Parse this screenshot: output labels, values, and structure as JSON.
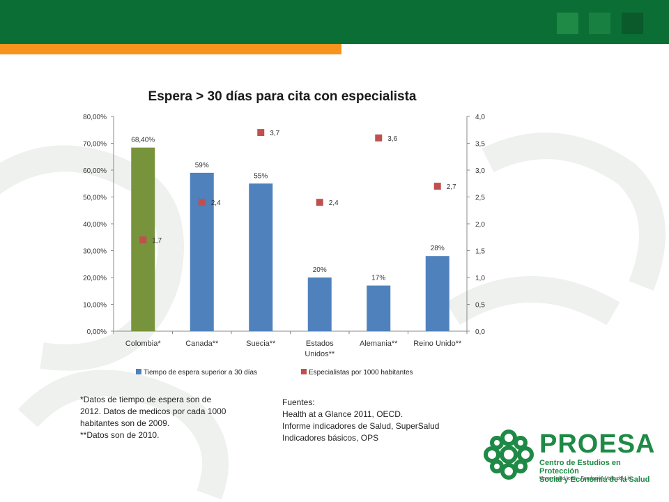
{
  "chart_data": {
    "type": "bar",
    "title": "Espera > 30 días para cita con especialista",
    "categories": [
      "Colombia*",
      "Canada**",
      "Suecia**",
      "Estados Unidos**",
      "Alemania**",
      "Reino Unido**"
    ],
    "category_lines": [
      [
        "Colombia*"
      ],
      [
        "Canada**"
      ],
      [
        "Suecia**"
      ],
      [
        "Estados",
        "Unidos**"
      ],
      [
        "Alemania**"
      ],
      [
        "Reino Unido**"
      ]
    ],
    "series": [
      {
        "name": "Tiempo de espera superior a 30 días",
        "axis": "left",
        "kind": "bar",
        "values": [
          68.4,
          59,
          55,
          20,
          17,
          28
        ],
        "labels": [
          "68,40%",
          "59%",
          "55%",
          "20%",
          "17%",
          "28%"
        ],
        "colors": [
          "#77933c",
          "#4f81bd",
          "#4f81bd",
          "#4f81bd",
          "#4f81bd",
          "#4f81bd"
        ]
      },
      {
        "name": "Especialistas por 1000 habitantes",
        "axis": "right",
        "kind": "marker",
        "values": [
          1.7,
          2.4,
          3.7,
          2.4,
          3.6,
          2.7
        ],
        "labels": [
          "1,7",
          "2,4",
          "3,7",
          "2,4",
          "3,6",
          "2,7"
        ],
        "color": "#c0504d"
      }
    ],
    "y_left": {
      "min": 0,
      "max": 80,
      "ticks": [
        "0,00%",
        "10,00%",
        "20,00%",
        "30,00%",
        "40,00%",
        "50,00%",
        "60,00%",
        "70,00%",
        "80,00%"
      ]
    },
    "y_right": {
      "min": 0,
      "max": 4,
      "ticks": [
        "0,0",
        "0,5",
        "1,0",
        "1,5",
        "2,0",
        "2,5",
        "3,0",
        "3,5",
        "4,0"
      ]
    },
    "legend_position": "bottom",
    "grid": false,
    "bar_color": "#4f81bd"
  },
  "notes": {
    "left": [
      "*Datos de tiempo de espera son de",
      "2012.  Datos de medicos por cada 1000",
      "habitantes  son de 2009.",
      "**Datos son de 2010."
    ],
    "right": [
      "Fuentes:",
      "Health at a Glance 2011,  OECD.",
      "Informe indicadores de Salud, SuperSalud",
      "Indicadores básicos, OPS"
    ]
  },
  "logo": {
    "name": "PROESA",
    "subtitle": [
      "Centro de Estudios en Protección",
      "Social y Economía de la Salud"
    ],
    "footer": "Universidad Icesi  ·  Fundación Valle del Lili"
  },
  "colors": {
    "header_green": "#0b6e34",
    "accent_orange": "#f7941d",
    "brand_green": "#1e8a45"
  }
}
